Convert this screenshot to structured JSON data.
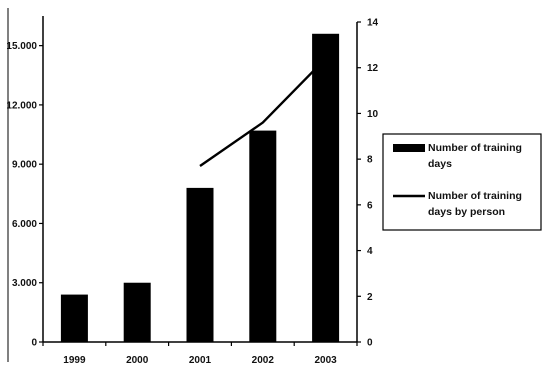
{
  "chart_data": {
    "type": "bar",
    "categories": [
      "1999",
      "2000",
      "2001",
      "2002",
      "2003"
    ],
    "series": [
      {
        "name": "Number of training days",
        "type": "bar",
        "axis": "left",
        "values": [
          2400,
          3000,
          7800,
          10700,
          15600
        ]
      },
      {
        "name": "Number of training days by person",
        "type": "line",
        "axis": "right",
        "values": [
          null,
          null,
          7.7,
          9.6,
          12.4
        ]
      }
    ],
    "y_left": {
      "ylim": [
        0,
        16500
      ],
      "ticks": [
        0,
        3000,
        6000,
        9000,
        12000,
        15000
      ],
      "tick_labels": [
        "0",
        "3.000",
        "6.000",
        "9.000",
        "12.000",
        "15.000"
      ]
    },
    "y_right": {
      "ylim": [
        0,
        14
      ],
      "ticks": [
        0,
        2,
        4,
        6,
        8,
        10,
        12,
        14
      ],
      "tick_labels": [
        "0",
        "2",
        "4",
        "6",
        "8",
        "10",
        "12",
        "14"
      ]
    },
    "title": "",
    "xlabel": "",
    "ylabel": "",
    "grid": false,
    "legend": {
      "placement": "right",
      "entries": [
        {
          "lines": [
            "Number of training",
            "days"
          ],
          "marker": "bar"
        },
        {
          "lines": [
            "Number of training",
            "days by person"
          ],
          "marker": "line"
        }
      ]
    },
    "colors": {
      "bar": "#000000",
      "line": "#000000",
      "axis": "#000000"
    }
  }
}
